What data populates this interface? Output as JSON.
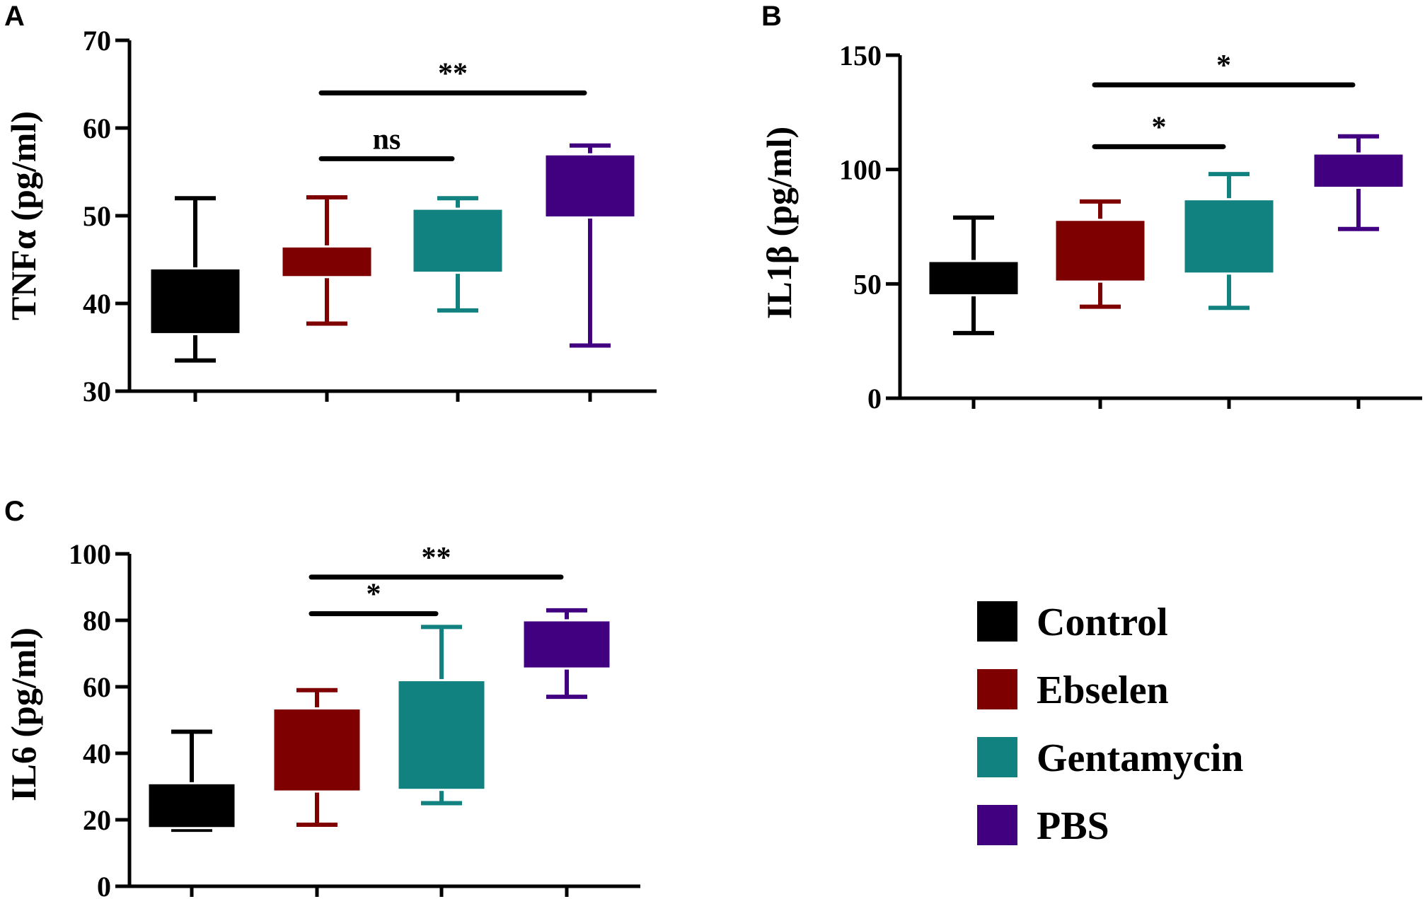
{
  "figure": {
    "legend": {
      "items": [
        {
          "label": "Control",
          "color": "#000000"
        },
        {
          "label": "Ebselen",
          "color": "#7f0000"
        },
        {
          "label": "Gentamycin",
          "color": "#128280"
        },
        {
          "label": "PBS",
          "color": "#410080"
        }
      ]
    }
  },
  "chart_data": [
    {
      "panel": "A",
      "type": "box",
      "ylabel": "TNFα (pg/ml)",
      "ylim": [
        30,
        70
      ],
      "yticks": [
        30,
        40,
        50,
        60,
        70
      ],
      "groups": [
        {
          "name": "Control",
          "min": 33.5,
          "q1": 36.5,
          "median": 41,
          "q3": 44,
          "max": 52
        },
        {
          "name": "Ebselen",
          "min": 37.7,
          "q1": 43,
          "median": 44.5,
          "q3": 46.5,
          "max": 52.1
        },
        {
          "name": "Gentamycin",
          "min": 39.2,
          "q1": 43.5,
          "median": 48,
          "q3": 50.8,
          "max": 52
        },
        {
          "name": "PBS",
          "min": 35.2,
          "q1": 49.8,
          "median": 56,
          "q3": 57,
          "max": 58
        }
      ],
      "significance": [
        {
          "from": 1,
          "to": 3,
          "label": "**",
          "y": 64
        },
        {
          "from": 1,
          "to": 2,
          "label": "ns",
          "y": 56.5
        }
      ]
    },
    {
      "panel": "B",
      "type": "box",
      "ylabel": "IL1β (pg/ml)",
      "ylim": [
        0,
        150
      ],
      "yticks": [
        0,
        50,
        100,
        150
      ],
      "groups": [
        {
          "name": "Control",
          "min": 28.5,
          "q1": 45,
          "median": 52,
          "q3": 60,
          "max": 79
        },
        {
          "name": "Ebselen",
          "min": 40,
          "q1": 51,
          "median": 62,
          "q3": 78,
          "max": 86
        },
        {
          "name": "Gentamycin",
          "min": 39.5,
          "q1": 54.5,
          "median": 68,
          "q3": 87,
          "max": 98
        },
        {
          "name": "PBS",
          "min": 74,
          "q1": 92,
          "median": 100,
          "q3": 107,
          "max": 114.5
        }
      ],
      "significance": [
        {
          "from": 1,
          "to": 3,
          "label": "*",
          "y": 137
        },
        {
          "from": 1,
          "to": 2,
          "label": "*",
          "y": 110
        }
      ]
    },
    {
      "panel": "C",
      "type": "box",
      "ylabel": "IL6 (pg/ml)",
      "ylim": [
        0,
        100
      ],
      "yticks": [
        0,
        20,
        40,
        60,
        80,
        100
      ],
      "groups": [
        {
          "name": "Control",
          "min": 17,
          "q1": 17.5,
          "median": 24,
          "q3": 31,
          "max": 46.5
        },
        {
          "name": "Ebselen",
          "min": 18.5,
          "q1": 28.5,
          "median": 40,
          "q3": 53.5,
          "max": 59
        },
        {
          "name": "Gentamycin",
          "min": 25,
          "q1": 29,
          "median": 45,
          "q3": 62,
          "max": 78
        },
        {
          "name": "PBS",
          "min": 57,
          "q1": 65.5,
          "median": 73,
          "q3": 80,
          "max": 83
        }
      ],
      "significance": [
        {
          "from": 1,
          "to": 3,
          "label": "**",
          "y": 93
        },
        {
          "from": 1,
          "to": 2,
          "label": "*",
          "y": 82
        }
      ]
    }
  ]
}
